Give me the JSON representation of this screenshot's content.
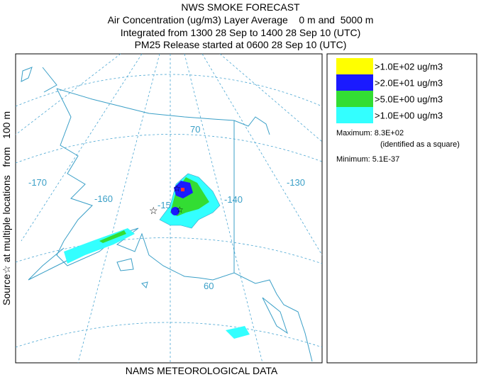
{
  "header": {
    "title": "NWS SMOKE FORECAST",
    "lines": [
      "Air Concentration (ug/m3) Layer Average    0 m and  5000 m",
      "Integrated from 1300 28 Sep to 1400 28 Sep 10 (UTC)",
      "PM25 Release started at 0600 28 Sep 10 (UTC)"
    ]
  },
  "side_label": "Source☆ at multiple locations   from   100 m",
  "map": {
    "longitude_labels": [
      "-170",
      "-160",
      "-15",
      "-140",
      "-130"
    ],
    "latitude_labels": [
      "70",
      "60"
    ]
  },
  "legend": {
    "entries": [
      {
        "label": ">1.0E+02 ug/m3",
        "color": "#ffff00"
      },
      {
        "label": ">2.0E+01 ug/m3",
        "color": "#1a1aff"
      },
      {
        "label": ">5.0E+00 ug/m3",
        "color": "#33dd33"
      },
      {
        "label": ">1.0E+00 ug/m3",
        "color": "#33ffff"
      }
    ],
    "maximum": "Maximum: 8.3E+02",
    "maximum_note": "(identified as a square)",
    "minimum": "Minimum: 5.1E-37"
  },
  "footer": "NAMS METEOROLOGICAL DATA"
}
